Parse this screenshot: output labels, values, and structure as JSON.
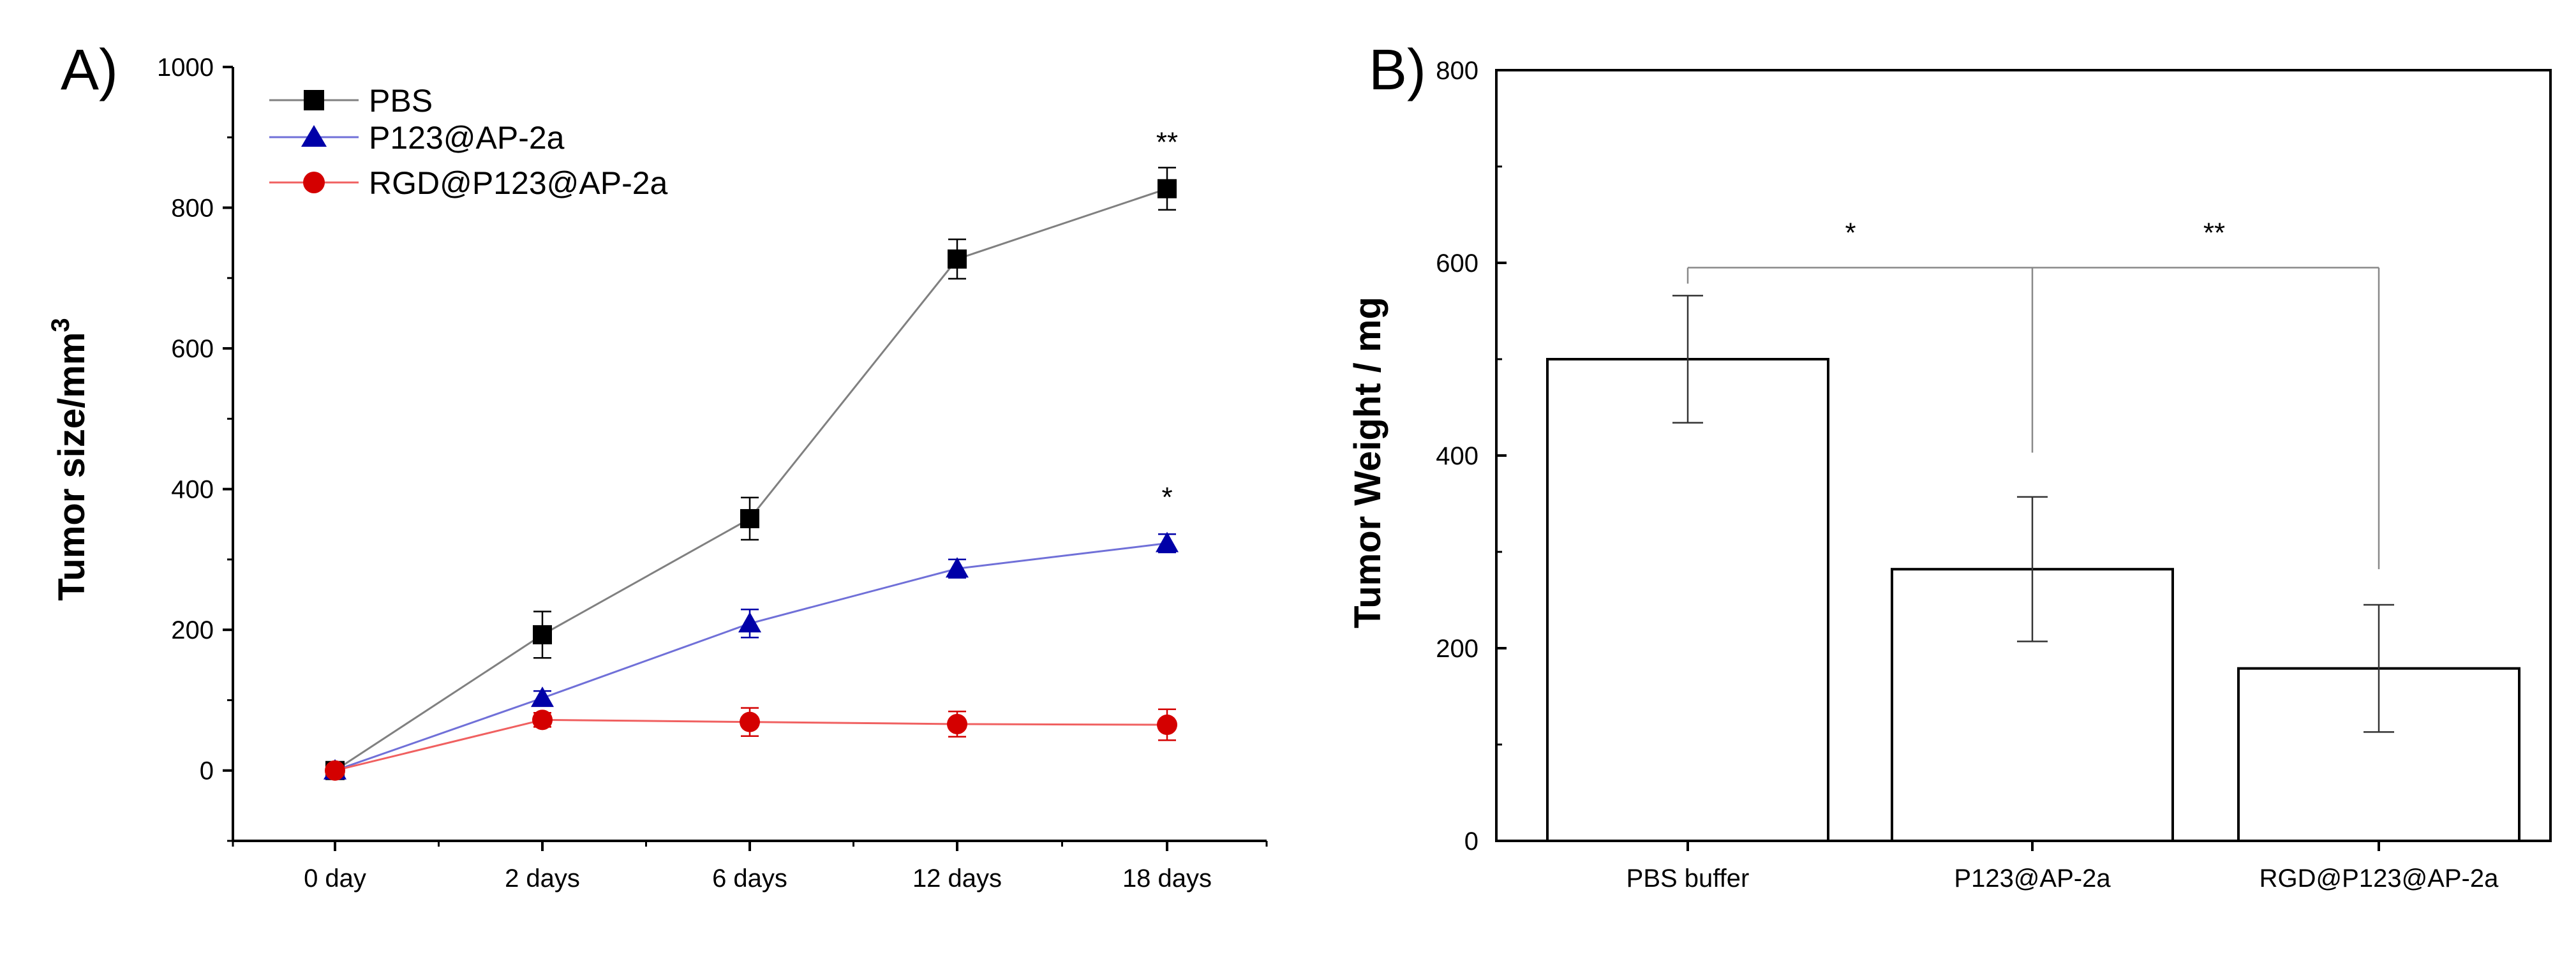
{
  "chart_data": [
    {
      "type": "line",
      "panel_label": "A)",
      "title": "",
      "xlabel": "",
      "ylabel": "Tumor size/mm",
      "ylabel_superscript": "3",
      "categories": [
        "0 day",
        "2 days",
        "6 days",
        "12 days",
        "18 days"
      ],
      "ylim": [
        -100,
        1000
      ],
      "yticks": [
        0,
        200,
        400,
        600,
        800,
        1000
      ],
      "ytick_labels": [
        "0",
        "200",
        "400",
        "600",
        "800",
        "1000"
      ],
      "grid": false,
      "legend_position": "top-left",
      "series": [
        {
          "name": "PBS",
          "marker": "square",
          "color": "#000000",
          "line_color": "#808080",
          "values": [
            0,
            193,
            358,
            727,
            827
          ],
          "errors": [
            5,
            33,
            30,
            28,
            30
          ]
        },
        {
          "name": "P123@AP-2a",
          "marker": "triangle",
          "color": "#0000a8",
          "line_color": "#7070d8",
          "values": [
            0,
            103,
            209,
            287,
            323
          ],
          "errors": [
            5,
            10,
            20,
            13,
            13
          ]
        },
        {
          "name": "RGD@P123@AP-2a",
          "marker": "circle",
          "color": "#d40000",
          "line_color": "#f06060",
          "values": [
            0,
            72,
            69,
            66,
            65
          ],
          "errors": [
            5,
            10,
            20,
            18,
            22
          ]
        }
      ],
      "annotations": [
        {
          "text": "**",
          "category": "18 days",
          "y": 880
        },
        {
          "text": "*",
          "category": "18 days",
          "y": 375
        }
      ]
    },
    {
      "type": "bar",
      "panel_label": "B)",
      "title": "",
      "xlabel": "",
      "ylabel": "Tumor Weight / mg",
      "categories": [
        "PBS buffer",
        "P123@AP-2a",
        "RGD@P123@AP-2a"
      ],
      "values": [
        500,
        282,
        179
      ],
      "errors": [
        66,
        75,
        66
      ],
      "ylim": [
        0,
        800
      ],
      "yticks": [
        0,
        200,
        400,
        600,
        800
      ],
      "ytick_labels": [
        "0",
        "200",
        "400",
        "600",
        "800"
      ],
      "grid": false,
      "bar_fill": "#ffffff",
      "bar_edge": "#000000",
      "significance": [
        {
          "text": "*",
          "from": "PBS buffer",
          "to": "P123@AP-2a",
          "y": 595
        },
        {
          "text": "**",
          "from": "P123@AP-2a",
          "to": "RGD@P123@AP-2a",
          "y": 595
        }
      ]
    }
  ]
}
